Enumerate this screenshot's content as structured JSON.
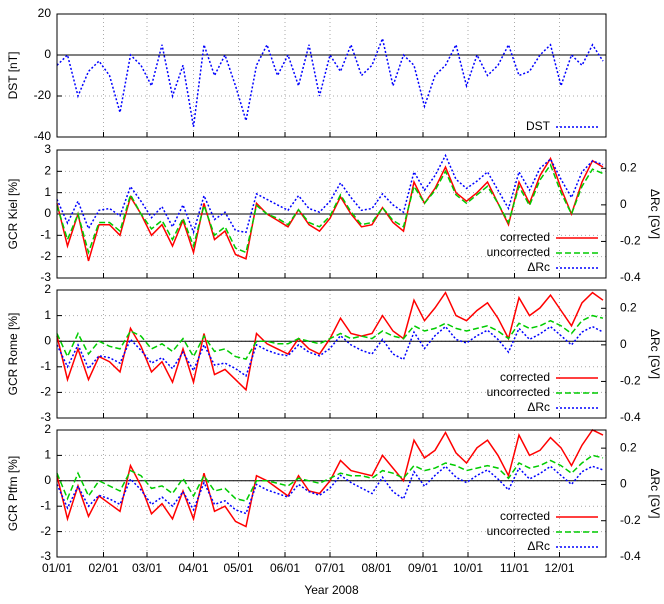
{
  "chart_data": [
    {
      "type": "line",
      "ylabel": "DST [nT]",
      "legend": "lower right",
      "grid": true,
      "x": [
        1,
        8,
        15,
        22,
        29,
        36,
        43,
        50,
        57,
        64,
        71,
        78,
        85,
        92,
        99,
        106,
        113,
        120,
        127,
        134,
        141,
        148,
        155,
        162,
        169,
        176,
        183,
        190,
        197,
        204,
        211,
        218,
        225,
        232,
        239,
        246,
        253,
        260,
        267,
        274,
        281,
        288,
        295,
        302,
        309,
        316,
        323,
        330,
        337,
        344,
        351,
        358,
        365
      ],
      "xlim": [
        1,
        367
      ],
      "xticks": [
        1,
        32,
        61,
        92,
        122,
        153,
        183,
        214,
        245,
        275,
        306,
        336
      ],
      "ylim": [
        -40,
        20
      ],
      "yticks": [
        -40,
        -20,
        0,
        20
      ],
      "series": [
        {
          "name": "DST",
          "color": "#0000ff",
          "style": "dotted",
          "values": [
            -5,
            0,
            -20,
            -8,
            -3,
            -10,
            -28,
            0,
            -5,
            -15,
            5,
            -20,
            -5,
            -35,
            5,
            -10,
            0,
            -15,
            -32,
            -5,
            5,
            -10,
            0,
            -15,
            5,
            -20,
            0,
            -8,
            5,
            -10,
            -5,
            8,
            -15,
            0,
            -5,
            -25,
            -10,
            -5,
            5,
            -15,
            0,
            -10,
            -5,
            5,
            -10,
            -8,
            0,
            5,
            -15,
            0,
            -5,
            5,
            -3
          ]
        }
      ]
    },
    {
      "type": "line",
      "ylabel": "GCR Kiel [%]",
      "y2label": "ΔRc [GV]",
      "legend": "lower right",
      "grid": true,
      "x": [
        1,
        8,
        15,
        22,
        29,
        36,
        43,
        50,
        57,
        64,
        71,
        78,
        85,
        92,
        99,
        106,
        113,
        120,
        127,
        134,
        141,
        148,
        155,
        162,
        169,
        176,
        183,
        190,
        197,
        204,
        211,
        218,
        225,
        232,
        239,
        246,
        253,
        260,
        267,
        274,
        281,
        288,
        295,
        302,
        309,
        316,
        323,
        330,
        337,
        344,
        351,
        358,
        365
      ],
      "xlim": [
        1,
        367
      ],
      "xticks": [
        1,
        32,
        61,
        92,
        122,
        153,
        183,
        214,
        245,
        275,
        306,
        336
      ],
      "ylim": [
        -3,
        3
      ],
      "yticks": [
        -3,
        -2,
        -1,
        0,
        1,
        2,
        3
      ],
      "y2lim": [
        -0.4,
        0.3
      ],
      "y2ticks": [
        -0.4,
        -0.2,
        0,
        0.2
      ],
      "series": [
        {
          "name": "corrected",
          "color": "#ff0000",
          "style": "solid",
          "values": [
            0.5,
            -1.5,
            0,
            -2.2,
            -0.5,
            -0.5,
            -1,
            0.8,
            0,
            -1,
            -0.5,
            -1.5,
            -0.3,
            -1.8,
            0.5,
            -1.2,
            -0.8,
            -1.9,
            -2.1,
            0.5,
            0,
            -0.3,
            -0.6,
            0.2,
            -0.5,
            -0.8,
            -0.2,
            0.8,
            0,
            -0.6,
            -0.5,
            0.3,
            -0.4,
            -0.8,
            1.5,
            0.5,
            1.2,
            2.2,
            1,
            0.6,
            1,
            1.5,
            0.5,
            -0.5,
            1.5,
            0.5,
            1.8,
            2.6,
            1.2,
            0,
            1.5,
            2.5,
            2.2
          ]
        },
        {
          "name": "uncorrected",
          "color": "#00cc00",
          "style": "dashed",
          "values": [
            0.4,
            -1.2,
            0,
            -1.8,
            -0.4,
            -0.4,
            -0.8,
            0.9,
            0,
            -0.7,
            -0.3,
            -1.2,
            -0.2,
            -1.5,
            0.4,
            -1,
            -0.6,
            -1.6,
            -1.8,
            0.4,
            0,
            -0.2,
            -0.5,
            0.2,
            -0.4,
            -0.6,
            -0.1,
            0.9,
            0.1,
            -0.5,
            -0.4,
            0.3,
            -0.3,
            -0.6,
            1.3,
            0.5,
            1.1,
            2,
            0.9,
            0.5,
            0.9,
            1.3,
            0.5,
            -0.4,
            1.3,
            0.4,
            1.6,
            2.3,
            1,
            0,
            1.3,
            2.1,
            1.9
          ]
        },
        {
          "name": "ΔRc",
          "color": "#0000ff",
          "style": "dotted",
          "axis": "y2",
          "values": [
            0.03,
            -0.1,
            0.02,
            -0.13,
            -0.03,
            -0.02,
            -0.06,
            0.1,
            0.02,
            -0.07,
            -0.01,
            -0.12,
            0,
            -0.15,
            0.05,
            -0.08,
            -0.04,
            -0.14,
            -0.15,
            0.06,
            0.03,
            0,
            -0.03,
            0.05,
            -0.02,
            -0.04,
            0.02,
            0.12,
            0.04,
            -0.03,
            -0.02,
            0.06,
            0,
            -0.04,
            0.18,
            0.08,
            0.16,
            0.27,
            0.14,
            0.09,
            0.13,
            0.18,
            0.08,
            -0.02,
            0.18,
            0.08,
            0.2,
            0.25,
            0.14,
            0.04,
            0.18,
            0.24,
            0.22
          ]
        }
      ]
    },
    {
      "type": "line",
      "ylabel": "GCR Rome [%]",
      "y2label": "ΔRc [GV]",
      "legend": "lower right",
      "grid": true,
      "x": [
        1,
        8,
        15,
        22,
        29,
        36,
        43,
        50,
        57,
        64,
        71,
        78,
        85,
        92,
        99,
        106,
        113,
        120,
        127,
        134,
        141,
        148,
        155,
        162,
        169,
        176,
        183,
        190,
        197,
        204,
        211,
        218,
        225,
        232,
        239,
        246,
        253,
        260,
        267,
        274,
        281,
        288,
        295,
        302,
        309,
        316,
        323,
        330,
        337,
        344,
        351,
        358,
        365
      ],
      "xlim": [
        1,
        367
      ],
      "xticks": [
        1,
        32,
        61,
        92,
        122,
        153,
        183,
        214,
        245,
        275,
        306,
        336
      ],
      "ylim": [
        -3,
        2
      ],
      "yticks": [
        -3,
        -2,
        -1,
        0,
        1,
        2
      ],
      "y2lim": [
        -0.4,
        0.3
      ],
      "y2ticks": [
        -0.4,
        -0.2,
        0,
        0.2
      ],
      "series": [
        {
          "name": "corrected",
          "color": "#ff0000",
          "style": "solid",
          "values": [
            0.2,
            -1.5,
            -0.3,
            -1.5,
            -0.6,
            -0.8,
            -1.2,
            0.5,
            -0.2,
            -1.2,
            -0.8,
            -1.6,
            -0.3,
            -1.6,
            0.3,
            -1.3,
            -1.1,
            -1.5,
            -1.9,
            0.3,
            -0.1,
            -0.3,
            -0.5,
            0.1,
            -0.3,
            -0.5,
            0.1,
            0.9,
            0.3,
            0.2,
            0.3,
            1,
            0.4,
            0.1,
            1.6,
            0.8,
            1.3,
            1.9,
            1,
            0.8,
            1.2,
            1.5,
            0.9,
            0.1,
            1.7,
            1,
            1.3,
            1.8,
            1.2,
            0.6,
            1.5,
            1.9,
            1.6
          ]
        },
        {
          "name": "uncorrected",
          "color": "#00cc00",
          "style": "dashed",
          "values": [
            0.3,
            -0.6,
            0.3,
            -0.5,
            0,
            -0.2,
            -0.3,
            0.4,
            0.2,
            -0.3,
            -0.1,
            -0.4,
            0.1,
            -0.6,
            0.2,
            -0.4,
            -0.3,
            -0.6,
            -0.7,
            0,
            0,
            -0.1,
            -0.1,
            0.1,
            0,
            -0.1,
            0.1,
            0.3,
            0.1,
            0.2,
            0.1,
            0.4,
            0.2,
            0.1,
            0.6,
            0.4,
            0.5,
            0.7,
            0.5,
            0.4,
            0.5,
            0.6,
            0.4,
            0.1,
            0.7,
            0.5,
            0.6,
            0.8,
            0.6,
            0.3,
            0.8,
            1,
            0.9
          ]
        },
        {
          "name": "ΔRc",
          "color": "#0000ff",
          "style": "dotted",
          "axis": "y2",
          "values": [
            0,
            -0.12,
            0,
            -0.13,
            -0.06,
            -0.07,
            -0.1,
            0.03,
            -0.03,
            -0.1,
            -0.07,
            -0.13,
            -0.04,
            -0.14,
            0,
            -0.11,
            -0.1,
            -0.13,
            -0.17,
            0,
            -0.03,
            -0.05,
            -0.06,
            0,
            -0.04,
            -0.06,
            -0.02,
            0.05,
            0,
            -0.03,
            -0.05,
            0.03,
            -0.05,
            -0.08,
            0.07,
            -0.02,
            0.05,
            0.1,
            0.03,
            0.01,
            0.05,
            0.08,
            0.03,
            -0.04,
            0.09,
            0.03,
            0.06,
            0.1,
            0.05,
            0,
            0.07,
            0.1,
            0.07
          ]
        }
      ]
    },
    {
      "type": "line",
      "ylabel": "GCR  Ptfm [%]",
      "y2label": "ΔRc [GV]",
      "xlabel": "Year 2008",
      "legend": "lower right",
      "grid": true,
      "x": [
        1,
        8,
        15,
        22,
        29,
        36,
        43,
        50,
        57,
        64,
        71,
        78,
        85,
        92,
        99,
        106,
        113,
        120,
        127,
        134,
        141,
        148,
        155,
        162,
        169,
        176,
        183,
        190,
        197,
        204,
        211,
        218,
        225,
        232,
        239,
        246,
        253,
        260,
        267,
        274,
        281,
        288,
        295,
        302,
        309,
        316,
        323,
        330,
        337,
        344,
        351,
        358,
        365
      ],
      "xlim": [
        1,
        367
      ],
      "xticks": [
        {
          "value": 1,
          "label": "01/01"
        },
        {
          "value": 32,
          "label": "02/01"
        },
        {
          "value": 61,
          "label": "03/01"
        },
        {
          "value": 92,
          "label": "04/01"
        },
        {
          "value": 122,
          "label": "05/01"
        },
        {
          "value": 153,
          "label": "06/01"
        },
        {
          "value": 183,
          "label": "07/01"
        },
        {
          "value": 214,
          "label": "08/01"
        },
        {
          "value": 245,
          "label": "09/01"
        },
        {
          "value": 275,
          "label": "10/01"
        },
        {
          "value": 306,
          "label": "11/01"
        },
        {
          "value": 336,
          "label": "12/01"
        }
      ],
      "ylim": [
        -3,
        2
      ],
      "yticks": [
        -3,
        -2,
        -1,
        0,
        1,
        2
      ],
      "y2lim": [
        -0.4,
        0.3
      ],
      "y2ticks": [
        -0.4,
        -0.2,
        0,
        0.2
      ],
      "series": [
        {
          "name": "corrected",
          "color": "#ff0000",
          "style": "solid",
          "values": [
            0.2,
            -1.5,
            -0.2,
            -1.4,
            -0.6,
            -0.9,
            -1.2,
            0.6,
            -0.2,
            -1.3,
            -0.9,
            -1.5,
            -0.4,
            -1.5,
            0.3,
            -1.2,
            -1,
            -1.6,
            -1.8,
            0.2,
            0,
            -0.3,
            -0.6,
            0.2,
            -0.4,
            -0.5,
            0,
            0.8,
            0.4,
            0.3,
            0.2,
            1,
            0.5,
            0,
            1.6,
            0.9,
            1.2,
            1.9,
            1.1,
            0.7,
            1.3,
            1.6,
            1,
            0.2,
            1.8,
            1,
            1.2,
            1.7,
            1.3,
            0.6,
            1.4,
            2,
            1.8
          ]
        },
        {
          "name": "uncorrected",
          "color": "#00cc00",
          "style": "dashed",
          "values": [
            0.3,
            -0.7,
            0.3,
            -0.6,
            0,
            -0.2,
            -0.4,
            0.4,
            0.2,
            -0.3,
            -0.2,
            -0.5,
            0.1,
            -0.6,
            0.2,
            -0.4,
            -0.3,
            -0.7,
            -0.8,
            0,
            0,
            -0.1,
            -0.2,
            0.1,
            0,
            -0.1,
            0.1,
            0.3,
            0.2,
            0.2,
            0.1,
            0.4,
            0.3,
            0.1,
            0.6,
            0.4,
            0.5,
            0.7,
            0.6,
            0.4,
            0.5,
            0.6,
            0.5,
            0.1,
            0.7,
            0.5,
            0.6,
            0.8,
            0.6,
            0.3,
            0.7,
            1,
            0.9
          ]
        },
        {
          "name": "ΔRc",
          "color": "#0000ff",
          "style": "dotted",
          "axis": "y2",
          "values": [
            0,
            -0.13,
            -0.01,
            -0.12,
            -0.06,
            -0.08,
            -0.11,
            0.03,
            -0.03,
            -0.11,
            -0.07,
            -0.12,
            -0.04,
            -0.14,
            0.01,
            -0.11,
            -0.09,
            -0.14,
            -0.16,
            0,
            -0.03,
            -0.05,
            -0.07,
            0,
            -0.04,
            -0.06,
            -0.02,
            0.05,
            0.01,
            -0.02,
            -0.05,
            0.04,
            -0.04,
            -0.08,
            0.07,
            -0.01,
            0.05,
            0.1,
            0.04,
            0.01,
            0.05,
            0.08,
            0.03,
            -0.03,
            0.09,
            0.03,
            0.06,
            0.1,
            0.05,
            0,
            0.07,
            0.1,
            0.08
          ]
        }
      ]
    }
  ]
}
